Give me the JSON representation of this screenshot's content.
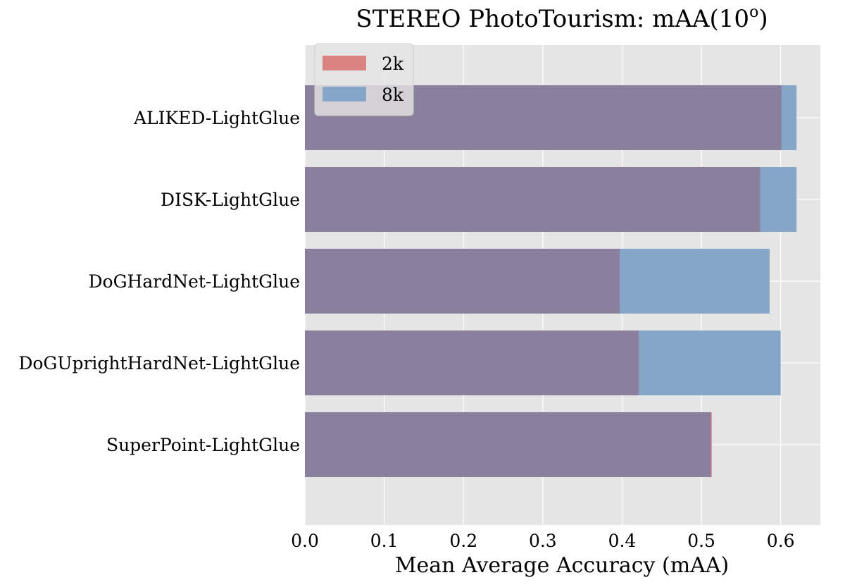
{
  "chart_data": {
    "type": "bar",
    "orientation": "horizontal",
    "title": "STEREO PhotoTourism: mAA(10",
    "title_superscript": "o",
    "title_suffix": ")",
    "xlabel": "Mean Average Accuracy (mAA)",
    "ylabel": "",
    "xlim": [
      0,
      0.65
    ],
    "xticks": [
      0.0,
      0.1,
      0.2,
      0.3,
      0.4,
      0.5,
      0.6
    ],
    "xtick_labels": [
      "0.0",
      "0.1",
      "0.2",
      "0.3",
      "0.4",
      "0.5",
      "0.6"
    ],
    "grid": true,
    "legend_position": "upper-left",
    "categories": [
      "ALIKED-LightGlue",
      "DISK-LightGlue",
      "DoGHardNet-LightGlue",
      "DoGUprightHardNet-LightGlue",
      "SuperPoint-LightGlue"
    ],
    "series": [
      {
        "name": "2k",
        "color": "#d9827f",
        "values": [
          0.601,
          0.574,
          0.397,
          0.421,
          0.513
        ]
      },
      {
        "name": "8k",
        "color": "#86a6c8",
        "values": [
          0.62,
          0.62,
          0.586,
          0.6,
          0.512
        ]
      }
    ],
    "overlap_color": "#8a7f9c",
    "background_color": "#e5e5e5",
    "grid_color": "#ffffff"
  }
}
